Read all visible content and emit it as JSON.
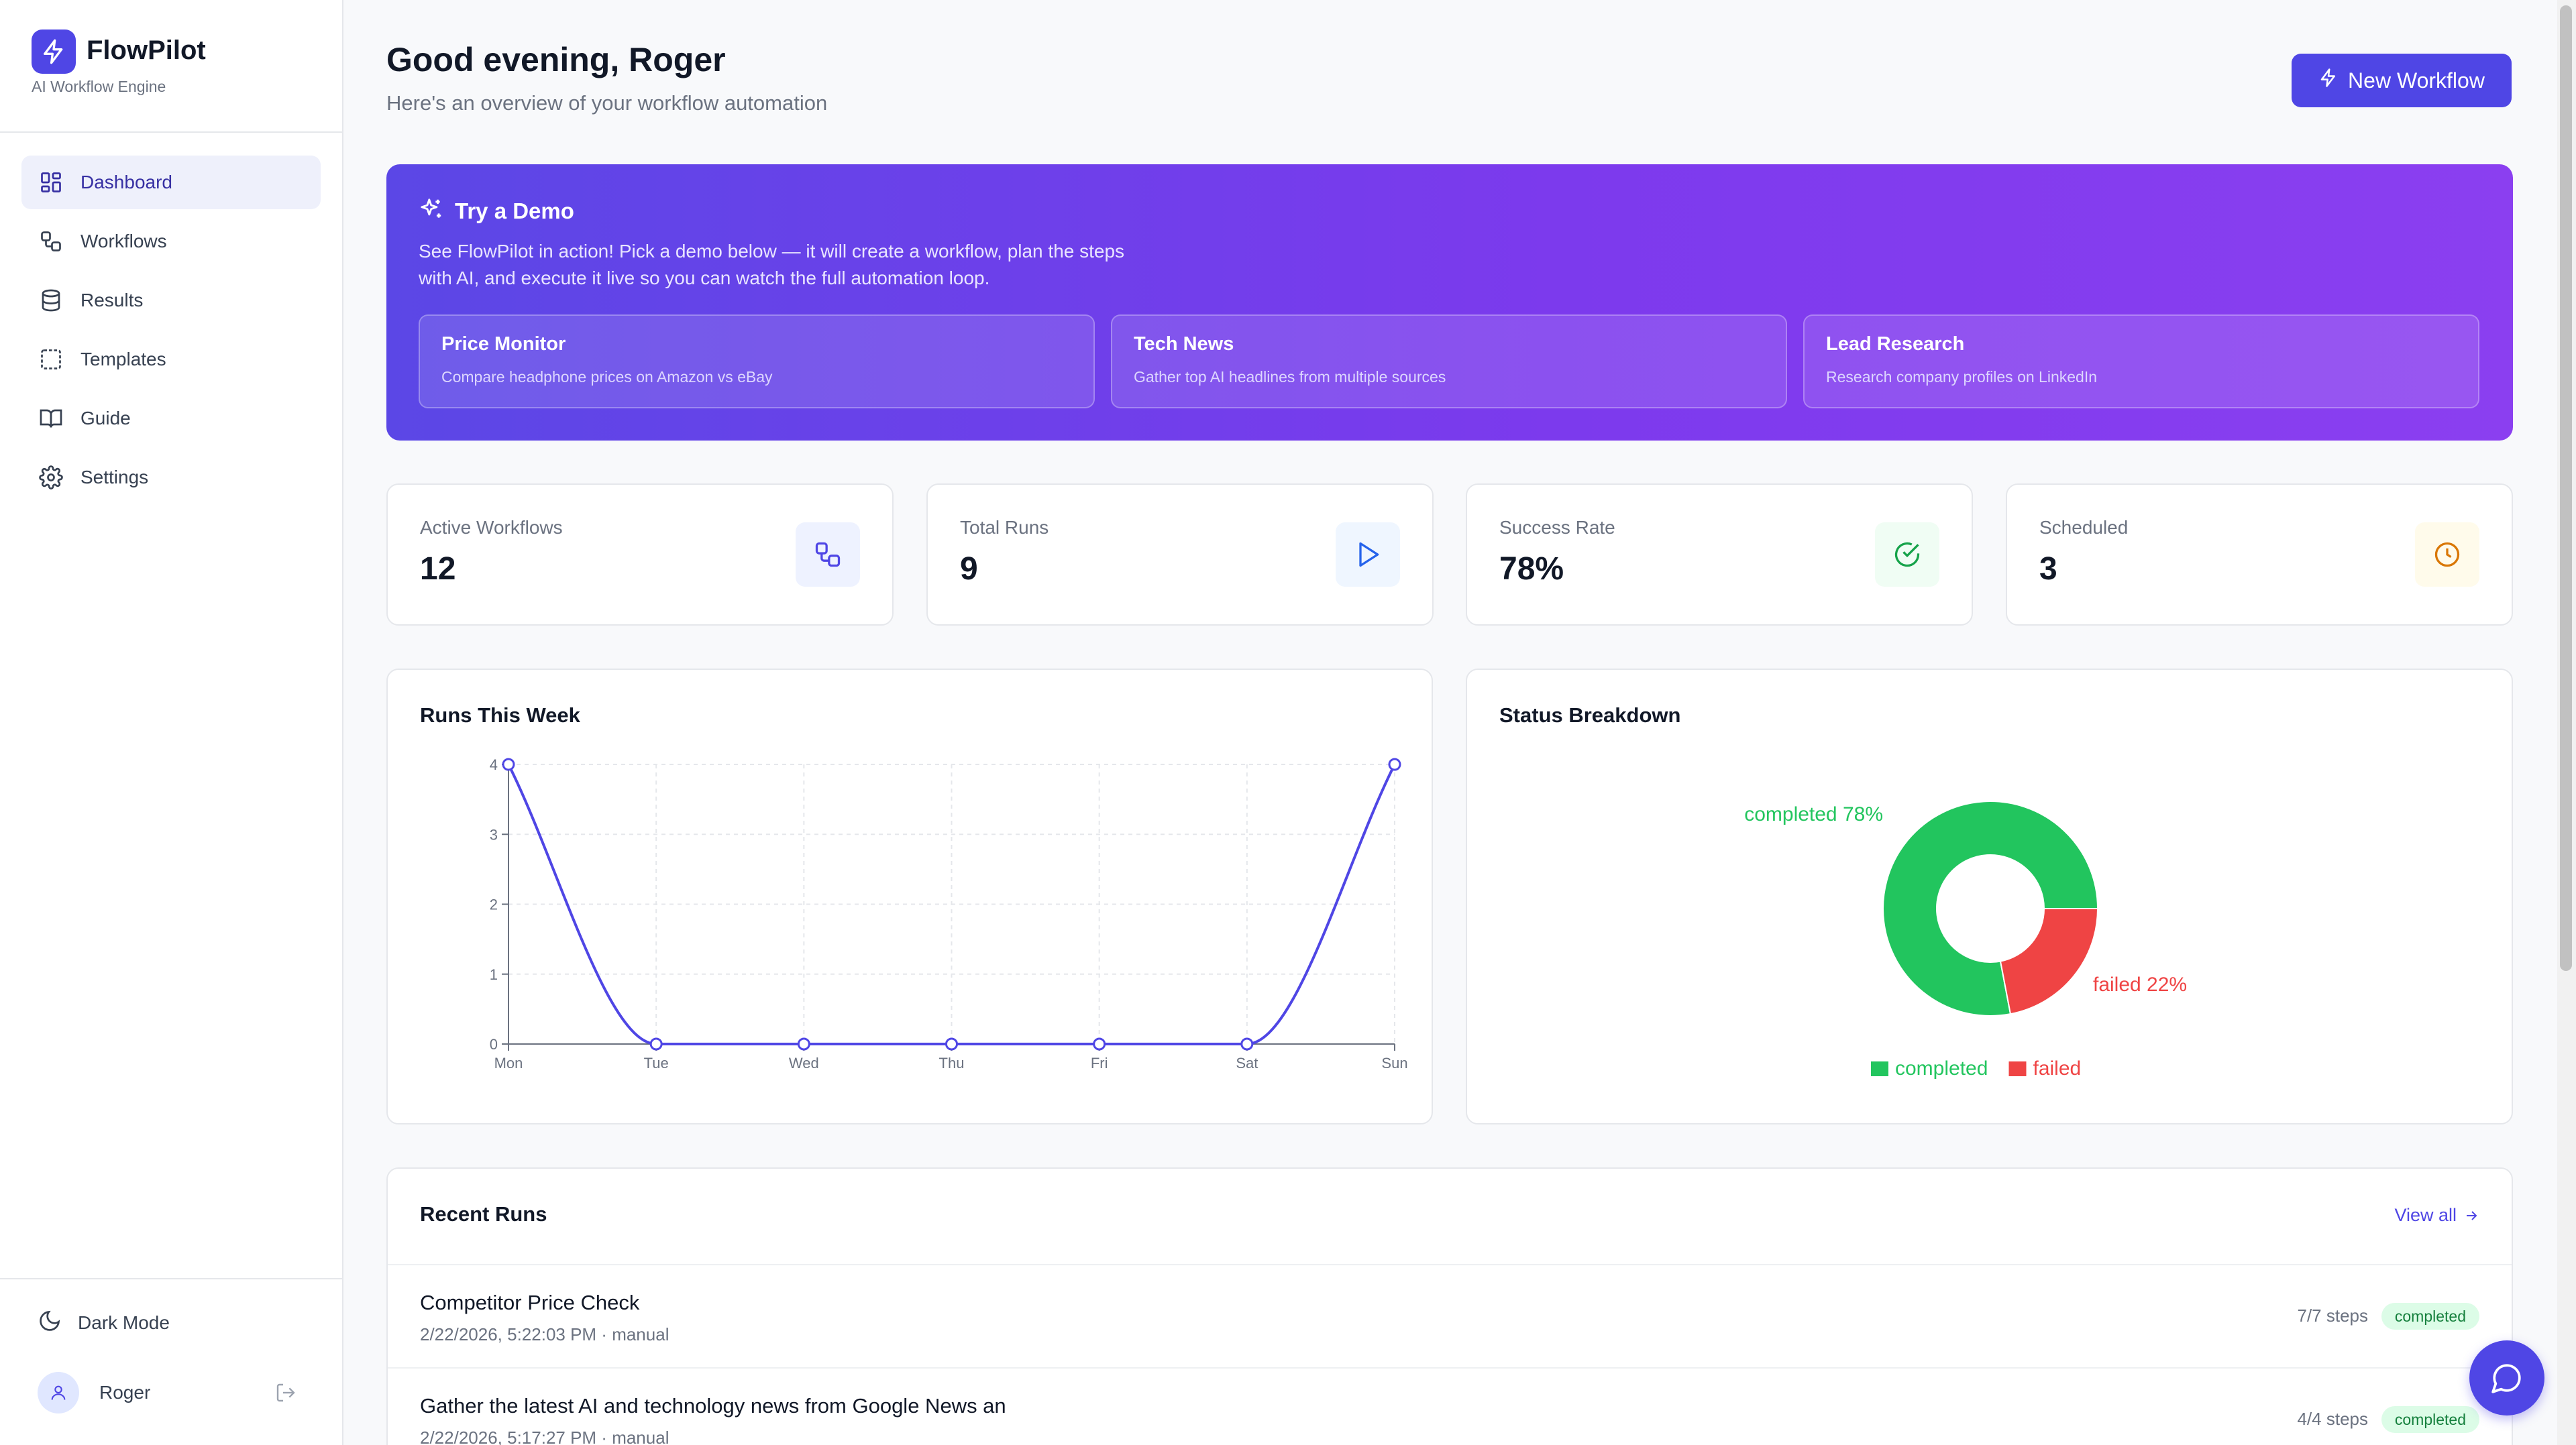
{
  "app": {
    "name": "FlowPilot",
    "subtitle": "AI Workflow Engine"
  },
  "sidebar": {
    "items": [
      {
        "label": "Dashboard",
        "icon": "dashboard-icon",
        "active": true
      },
      {
        "label": "Workflows",
        "icon": "workflow-icon",
        "active": false
      },
      {
        "label": "Results",
        "icon": "database-icon",
        "active": false
      },
      {
        "label": "Templates",
        "icon": "template-icon",
        "active": false
      },
      {
        "label": "Guide",
        "icon": "book-icon",
        "active": false
      },
      {
        "label": "Settings",
        "icon": "gear-icon",
        "active": false
      }
    ],
    "dark_mode_label": "Dark Mode",
    "user_name": "Roger"
  },
  "header": {
    "greeting": "Good evening, Roger",
    "subtitle": "Here's an overview of your workflow automation",
    "new_workflow_label": "New Workflow"
  },
  "demo": {
    "title": "Try a Demo",
    "description": "See FlowPilot in action! Pick a demo below — it will create a workflow, plan the steps with AI, and execute it live so you can watch the full automation loop.",
    "cards": [
      {
        "title": "Price Monitor",
        "desc": "Compare headphone prices on Amazon vs eBay"
      },
      {
        "title": "Tech News",
        "desc": "Gather top AI headlines from multiple sources"
      },
      {
        "title": "Lead Research",
        "desc": "Research company profiles on LinkedIn"
      }
    ]
  },
  "stats": [
    {
      "label": "Active Workflows",
      "value": "12",
      "icon": "workflow-icon",
      "bg": "#eef2ff",
      "color": "#4f46e5"
    },
    {
      "label": "Total Runs",
      "value": "9",
      "icon": "play-icon",
      "bg": "#eff6ff",
      "color": "#2563eb"
    },
    {
      "label": "Success Rate",
      "value": "78%",
      "icon": "check-circle-icon",
      "bg": "#f0fdf4",
      "color": "#16a34a"
    },
    {
      "label": "Scheduled",
      "value": "3",
      "icon": "clock-icon",
      "bg": "#fffbeb",
      "color": "#d97706"
    }
  ],
  "runs_chart_title": "Runs This Week",
  "status_chart_title": "Status Breakdown",
  "chart_data": [
    {
      "type": "line",
      "title": "Runs This Week",
      "categories": [
        "Mon",
        "Tue",
        "Wed",
        "Thu",
        "Fri",
        "Sat",
        "Sun"
      ],
      "values": [
        4,
        0,
        0,
        0,
        0,
        0,
        4
      ],
      "yticks": [
        0,
        1,
        2,
        3,
        4
      ],
      "ylim": [
        0,
        4
      ],
      "grid": true,
      "color": "#4f46e5"
    },
    {
      "type": "pie",
      "title": "Status Breakdown",
      "slices": [
        {
          "name": "completed",
          "value": 78,
          "label": "completed 78%",
          "color": "#22c55e"
        },
        {
          "name": "failed",
          "value": 22,
          "label": "failed 22%",
          "color": "#ef4444"
        }
      ],
      "legend": "bottom"
    }
  ],
  "recent_runs": {
    "title": "Recent Runs",
    "view_all": "View all",
    "rows": [
      {
        "name": "Competitor Price Check",
        "meta": "2/22/2026, 5:22:03 PM · manual",
        "steps": "7/7 steps",
        "status": "completed"
      },
      {
        "name": "Gather the latest AI and technology news from Google News an",
        "meta": "2/22/2026, 5:17:27 PM · manual",
        "steps": "4/4 steps",
        "status": "completed"
      }
    ]
  },
  "colors": {
    "accent": "#4f46e5",
    "completed": "#22c55e",
    "failed": "#ef4444"
  }
}
